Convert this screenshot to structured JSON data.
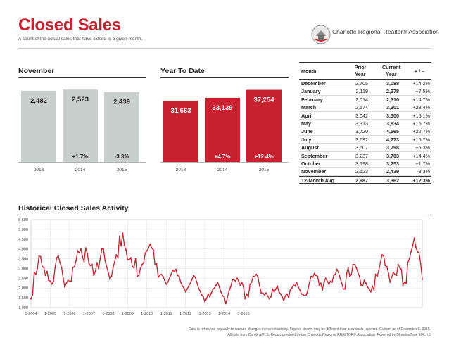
{
  "header": {
    "title": "Closed Sales",
    "subtitle": "A count of the actual sales that have closed in a given month.",
    "logo_text": "Charlotte Regional Realtor® Association"
  },
  "colors": {
    "red": "#c8202f",
    "gray": "#c9cfcd",
    "text": "#222222"
  },
  "november": {
    "title": "November",
    "chart_data": {
      "type": "bar",
      "categories": [
        "2013",
        "2014",
        "2015"
      ],
      "values": [
        2482,
        2523,
        2439
      ],
      "value_labels": [
        "2,482",
        "2,523",
        "2,439"
      ],
      "change_labels": [
        "",
        "+1.7%",
        "-3.3%"
      ],
      "ylim": [
        0,
        2700
      ]
    }
  },
  "ytd": {
    "title": "Year To Date",
    "chart_data": {
      "type": "bar",
      "categories": [
        "2013",
        "2014",
        "2015"
      ],
      "values": [
        31663,
        33139,
        37254
      ],
      "value_labels": [
        "31,663",
        "33,139",
        "37,254"
      ],
      "change_labels": [
        "",
        "+4.7%",
        "+12.4%"
      ],
      "ylim": [
        0,
        40000
      ]
    }
  },
  "table": {
    "headers": {
      "month": "Month",
      "prior": "Prior\nYear",
      "current": "Current\nYear",
      "change": "+ / –"
    },
    "rows": [
      {
        "month": "December",
        "prior": "2,705",
        "current": "3,088",
        "change": "+14.2%"
      },
      {
        "month": "January",
        "prior": "2,119",
        "current": "2,278",
        "change": "+7.5%"
      },
      {
        "month": "February",
        "prior": "2,014",
        "current": "2,310",
        "change": "+14.7%"
      },
      {
        "month": "March",
        "prior": "2,674",
        "current": "3,301",
        "change": "+23.4%"
      },
      {
        "month": "April",
        "prior": "3,042",
        "current": "3,500",
        "change": "+15.1%"
      },
      {
        "month": "May",
        "prior": "3,313",
        "current": "3,834",
        "change": "+15.7%"
      },
      {
        "month": "June",
        "prior": "3,720",
        "current": "4,565",
        "change": "+22.7%"
      },
      {
        "month": "July",
        "prior": "3,692",
        "current": "4,273",
        "change": "+15.7%"
      },
      {
        "month": "August",
        "prior": "3,607",
        "current": "3,798",
        "change": "+5.3%"
      },
      {
        "month": "September",
        "prior": "3,237",
        "current": "3,703",
        "change": "+14.4%"
      },
      {
        "month": "October",
        "prior": "3,198",
        "current": "3,253",
        "change": "+1.7%"
      },
      {
        "month": "November",
        "prior": "2,523",
        "current": "2,439",
        "change": "-3.3%"
      }
    ],
    "avg": {
      "month": "12-Month Avg",
      "prior": "2,987",
      "current": "3,362",
      "change": "+12.3%"
    }
  },
  "historical": {
    "title": "Historical Closed Sales Activity",
    "chart_data": {
      "type": "line",
      "ylim": [
        1000,
        5500
      ],
      "yticks": [
        1000,
        1500,
        2000,
        2500,
        3000,
        3500,
        4000,
        4500,
        5000,
        5500
      ],
      "ytick_labels": [
        "1,000",
        "1,500",
        "2,000",
        "2,500",
        "3,000",
        "3,500",
        "4,000",
        "4,500",
        "5,000",
        "5,500"
      ],
      "xtick_labels": [
        "1-2004",
        "1-2005",
        "1-2006",
        "1-2007",
        "1-2008",
        "1-2009",
        "1-2010",
        "1-2011",
        "1-2012",
        "1-2013",
        "1-2014",
        "1-2015"
      ],
      "start": "1-2004",
      "series": [
        {
          "name": "Closed Sales",
          "values": [
            1450,
            1650,
            2800,
            2700,
            3000,
            3650,
            3600,
            3100,
            3050,
            2650,
            2850,
            2400,
            2350,
            2200,
            2350,
            3050,
            3550,
            3650,
            3300,
            3050,
            2500,
            2050,
            2250,
            2400,
            2350,
            2350,
            3050,
            3100,
            3400,
            3900,
            3800,
            4000,
            3600,
            3350,
            4050,
            3750,
            3250,
            3150,
            3200,
            2650,
            2850,
            3300,
            3000,
            3500,
            4000,
            4000,
            3400,
            3100,
            2800,
            2450,
            2600,
            3050,
            3350,
            3700,
            3550,
            4650,
            4150,
            4800,
            4200,
            3950,
            3450,
            3450,
            3550,
            3100,
            3050,
            3500,
            2600,
            2650,
            3000,
            3200,
            3300,
            3800,
            3900,
            4050,
            4250,
            4050,
            3950,
            3200,
            3250,
            2550,
            2650,
            2700,
            2600,
            2400,
            2200,
            2300,
            2500,
            2700,
            2900,
            2850,
            2950,
            2650,
            2600,
            2300,
            2100,
            2000,
            1800,
            1950,
            2100,
            2250,
            2450,
            2650,
            2550,
            2300,
            2000,
            1850,
            1650,
            1550,
            1300,
            1450,
            1700,
            1550,
            1750,
            1950,
            2000,
            2150,
            2300,
            2050,
            1800,
            1600,
            1550,
            1200,
            1500,
            1850,
            2050,
            2400,
            2450,
            2350,
            2500,
            2350,
            2150,
            2300,
            2050,
            1450,
            1700,
            1550,
            2200,
            2300,
            2600,
            2600,
            2700,
            2550,
            2100,
            1750,
            1750,
            1650,
            1750,
            1600,
            1450,
            1550,
            1950,
            1800,
            1950,
            2100,
            1800,
            1700,
            1550,
            1350,
            1600,
            1700,
            1500,
            1900,
            2000,
            2150,
            2100,
            2300,
            2050,
            1900,
            1700,
            1650,
            1600,
            1650,
            1900,
            2300,
            2600,
            2550,
            2750,
            2650,
            2600,
            2150,
            2250,
            1900,
            2300,
            2500,
            2350,
            2200,
            2350,
            2300,
            2650,
            2700,
            2950,
            2800,
            2500,
            2250,
            1950,
            1950,
            2750,
            3050,
            2600,
            2700,
            3200,
            3200,
            3050,
            2800,
            2600,
            2150,
            2100,
            2400,
            2250,
            2050,
            1950,
            1800,
            2100,
            1900,
            2700,
            2600,
            2900,
            3300,
            3700,
            3650,
            3150,
            3100,
            2750,
            2300,
            2550,
            2800,
            2700,
            2650,
            3200,
            3050,
            2950,
            2150,
            2300,
            2250,
            3300,
            3500,
            3850,
            4150,
            4550,
            4100,
            3850,
            3800,
            3250,
            2450
          ]
        }
      ]
    }
  },
  "footer": {
    "line1": "Data is refreshed regularly to capture changes in market activity. Figures shown may be different than previously reported. Current as of December 5, 2015.",
    "line2": "All data from CarolinaMLS. Report provided by the Charlotte Regional REALTOR® Association. Powered by ShowingTime 10K.  |  5"
  }
}
